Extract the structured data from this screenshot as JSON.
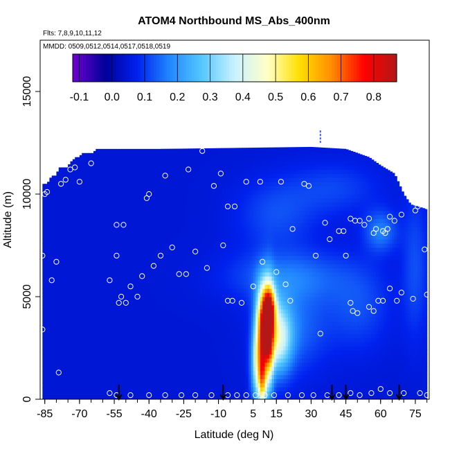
{
  "chart_data": {
    "type": "heatmap",
    "title": "ATOM4 Northbound MS_Abs_400nm",
    "flights_label": "Flts: 7,8,9,10,11,12",
    "dates_label": "MMDD: 0509,0512,0514,0517,0518,0519",
    "xlabel": "Latitude (deg N)",
    "ylabel": "Altitude (m)",
    "xlim": [
      -87,
      81
    ],
    "ylim": [
      0,
      17500
    ],
    "x_ticks": [
      -85,
      -70,
      -55,
      -40,
      -25,
      -10,
      5,
      15,
      30,
      45,
      60,
      75
    ],
    "y_ticks": [
      0,
      5000,
      10000,
      15000
    ],
    "x_tick_labels": [
      "-85",
      "-70",
      "-55",
      "-40",
      "-25",
      "-10",
      "5",
      "15",
      "30",
      "45",
      "60",
      "75"
    ],
    "y_tick_labels": [
      "0",
      "5000",
      "10000",
      "15000"
    ],
    "colorbar": {
      "range": [
        -0.12,
        0.87
      ],
      "ticks": [
        -0.1,
        0.0,
        0.1,
        0.2,
        0.3,
        0.4,
        0.5,
        0.6,
        0.7,
        0.8
      ],
      "tick_labels": [
        "-0.1",
        "0.0",
        "0.1",
        "0.2",
        "0.3",
        "0.4",
        "0.5",
        "0.6",
        "0.7",
        "0.8"
      ],
      "colors": [
        "#7000d0",
        "#00009a",
        "#0022ee",
        "#2288ff",
        "#55c8ff",
        "#c8f2ff",
        "#ffffc8",
        "#ffe000",
        "#ff8c00",
        "#ff0000",
        "#b21818"
      ]
    },
    "background_value": 0.05,
    "top_profile": [
      [
        -85,
        10500
      ],
      [
        -84,
        10500
      ],
      [
        -83,
        10700
      ],
      [
        -82,
        10900
      ],
      [
        -80,
        10900
      ],
      [
        -79,
        11300
      ],
      [
        -75,
        11300
      ],
      [
        -74,
        11600
      ],
      [
        -73,
        11600
      ],
      [
        -72,
        11800
      ],
      [
        -70,
        11800
      ],
      [
        -69,
        12000
      ],
      [
        -64,
        12000
      ],
      [
        -63,
        12200
      ],
      [
        -35,
        12200
      ],
      [
        30,
        12300
      ],
      [
        45,
        12200
      ],
      [
        55,
        11800
      ],
      [
        60,
        11400
      ],
      [
        66,
        11000
      ],
      [
        68,
        10500
      ],
      [
        70,
        10000
      ],
      [
        73,
        9500
      ],
      [
        76,
        9400
      ],
      [
        79,
        9300
      ]
    ],
    "plumes": [
      {
        "lat": 10,
        "alt": 3500,
        "sx": 2.5,
        "sy": 1400,
        "value": 0.72
      },
      {
        "lat": 12,
        "alt": 4500,
        "sx": 2.0,
        "sy": 700,
        "value": 0.35
      },
      {
        "lat": 16,
        "alt": 3000,
        "sx": 4.0,
        "sy": 1200,
        "value": 0.3
      },
      {
        "lat": 7,
        "alt": 1500,
        "sx": 2.0,
        "sy": 1200,
        "value": 0.3
      },
      {
        "lat": 9,
        "alt": 800,
        "sx": 1.2,
        "sy": 900,
        "value": 0.35
      },
      {
        "lat": 12,
        "alt": 2500,
        "sx": 1.3,
        "sy": 2000,
        "value": 0.2
      },
      {
        "lat": 22,
        "alt": 3500,
        "sx": 10,
        "sy": 1500,
        "value": 0.1
      },
      {
        "lat": 20,
        "alt": 6000,
        "sx": 18,
        "sy": 900,
        "value": 0.1
      },
      {
        "lat": 60,
        "alt": 8200,
        "sx": 5,
        "sy": 700,
        "value": 0.12
      },
      {
        "lat": 50,
        "alt": 4500,
        "sx": 10,
        "sy": 1500,
        "value": 0.07
      },
      {
        "lat": 15,
        "alt": 9000,
        "sx": 12,
        "sy": 1200,
        "value": 0.07
      },
      {
        "lat": 40,
        "alt": 10300,
        "sx": 14,
        "sy": 900,
        "value": 0.06
      },
      {
        "lat": 75,
        "alt": 6500,
        "sx": 4,
        "sy": 2500,
        "value": 0.07
      }
    ],
    "sample_points": [
      [
        -86,
        7000
      ],
      [
        -86,
        3400
      ],
      [
        -85,
        10000
      ],
      [
        -84,
        10100
      ],
      [
        -82,
        5800
      ],
      [
        -80,
        6700
      ],
      [
        -79,
        1300
      ],
      [
        -78,
        10500
      ],
      [
        -76,
        10700
      ],
      [
        -74,
        11200
      ],
      [
        -72,
        11300
      ],
      [
        -70,
        10600
      ],
      [
        -65,
        11500
      ],
      [
        -57,
        5800
      ],
      [
        -54,
        8500
      ],
      [
        -51,
        8500
      ],
      [
        -54,
        7000
      ],
      [
        -52,
        5000
      ],
      [
        -53,
        4700
      ],
      [
        -50,
        4700
      ],
      [
        -48,
        5500
      ],
      [
        -45,
        5000
      ],
      [
        -43,
        6000
      ],
      [
        -41,
        9800
      ],
      [
        -40,
        10000
      ],
      [
        -38,
        6500
      ],
      [
        -35,
        7000
      ],
      [
        -33,
        10900
      ],
      [
        -30,
        7400
      ],
      [
        -27,
        6100
      ],
      [
        -24,
        6100
      ],
      [
        -23,
        11200
      ],
      [
        -20,
        7200
      ],
      [
        -17,
        12100
      ],
      [
        -15,
        6400
      ],
      [
        -12,
        10400
      ],
      [
        -9,
        11000
      ],
      [
        -8,
        7500
      ],
      [
        -6,
        9400
      ],
      [
        -6,
        4800
      ],
      [
        -4,
        4800
      ],
      [
        -3,
        9400
      ],
      [
        0,
        4700
      ],
      [
        2,
        10600
      ],
      [
        5,
        5500
      ],
      [
        8,
        10600
      ],
      [
        9,
        6700
      ],
      [
        15,
        6200
      ],
      [
        17,
        10600
      ],
      [
        19,
        5600
      ],
      [
        21,
        4800
      ],
      [
        22,
        8300
      ],
      [
        27,
        10500
      ],
      [
        29,
        10400
      ],
      [
        32,
        7000
      ],
      [
        34,
        3200
      ],
      [
        36,
        8600
      ],
      [
        38,
        7800
      ],
      [
        42,
        8200
      ],
      [
        44,
        8200
      ],
      [
        45,
        7000
      ],
      [
        47,
        4700
      ],
      [
        47,
        8800
      ],
      [
        48,
        4300
      ],
      [
        49,
        8700
      ],
      [
        50,
        4200
      ],
      [
        51,
        8700
      ],
      [
        53,
        8500
      ],
      [
        55,
        8800
      ],
      [
        55,
        4500
      ],
      [
        57,
        8100
      ],
      [
        57,
        4300
      ],
      [
        58,
        8300
      ],
      [
        59,
        4800
      ],
      [
        61,
        4800
      ],
      [
        61,
        8200
      ],
      [
        62,
        8100
      ],
      [
        63,
        8300
      ],
      [
        64,
        8900
      ],
      [
        64,
        5400
      ],
      [
        66,
        8700
      ],
      [
        67,
        4800
      ],
      [
        69,
        9000
      ],
      [
        69,
        5200
      ],
      [
        70,
        11100
      ],
      [
        70,
        10800
      ],
      [
        72,
        10800
      ],
      [
        73,
        10900
      ],
      [
        74,
        4900
      ],
      [
        75,
        9200
      ],
      [
        76,
        9400
      ],
      [
        79,
        7300
      ],
      [
        80,
        9400
      ],
      [
        80,
        5100
      ],
      [
        -57,
        300
      ],
      [
        -54,
        200
      ],
      [
        -48,
        200
      ],
      [
        -40,
        200
      ],
      [
        -33,
        200
      ],
      [
        -26,
        200
      ],
      [
        -20,
        200
      ],
      [
        -13,
        200
      ],
      [
        -6,
        200
      ],
      [
        -2,
        200
      ],
      [
        2,
        200
      ],
      [
        6,
        200
      ],
      [
        10,
        200
      ],
      [
        14,
        200
      ],
      [
        20,
        200
      ],
      [
        26,
        200
      ],
      [
        31,
        200
      ],
      [
        37,
        200
      ],
      [
        42,
        200
      ],
      [
        47,
        300
      ],
      [
        51,
        200
      ],
      [
        56,
        300
      ],
      [
        60,
        500
      ],
      [
        64,
        300
      ],
      [
        70,
        300
      ],
      [
        77,
        300
      ],
      [
        80,
        200
      ]
    ],
    "arrows_lat": [
      -53,
      -8,
      39,
      45,
      68
    ],
    "marker": {
      "lat": 34,
      "alt": 12800
    }
  }
}
